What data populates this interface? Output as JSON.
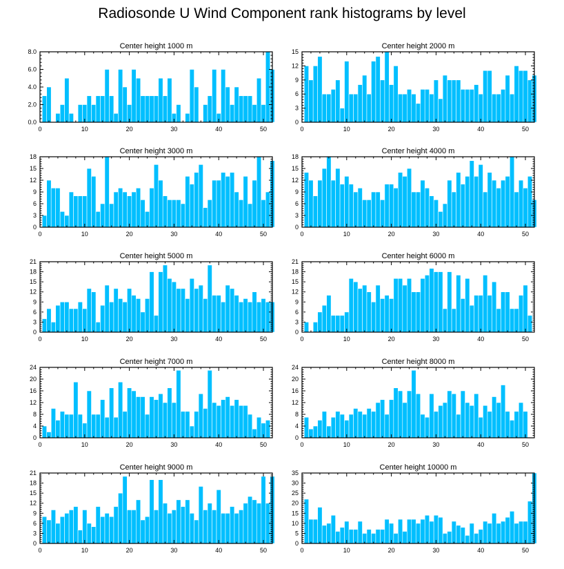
{
  "title": "Radiosonde U Wind Component rank histograms by level",
  "colors": {
    "bar": "#00bfff",
    "frame": "#000000",
    "background": "#ffffff"
  },
  "chart_data": [
    {
      "type": "bar",
      "title": "Center height 1000 m",
      "ylim": [
        0,
        8
      ],
      "yticks": [
        0,
        2,
        4,
        6,
        8
      ],
      "ytick_labels": [
        "0.0",
        "2.0",
        "4.0",
        "6.0",
        "8.0"
      ],
      "xlim": [
        0,
        52
      ],
      "xticks": [
        0,
        10,
        20,
        30,
        40,
        50
      ],
      "x_start": 1,
      "values": [
        3,
        4,
        0,
        1,
        2,
        5,
        1,
        0,
        2,
        2,
        3,
        2,
        3,
        3,
        6,
        3,
        1,
        6,
        4,
        2,
        6,
        5,
        3,
        3,
        3,
        3,
        5,
        3,
        5,
        1,
        2,
        0,
        1,
        6,
        4,
        0,
        2,
        3,
        6,
        1,
        6,
        4,
        2,
        4,
        3,
        3,
        3,
        2,
        5,
        2,
        8,
        6
      ]
    },
    {
      "type": "bar",
      "title": "Center height 2000 m",
      "ylim": [
        0,
        15
      ],
      "yticks": [
        0,
        3,
        6,
        9,
        12,
        15
      ],
      "ytick_labels": [
        "0",
        "3",
        "6",
        "9",
        "12",
        "15"
      ],
      "xlim": [
        0,
        52
      ],
      "xticks": [
        0,
        10,
        20,
        30,
        40,
        50
      ],
      "x_start": 1,
      "values": [
        12,
        9,
        12,
        14,
        6,
        6,
        7,
        9,
        3,
        13,
        6,
        6,
        8,
        10,
        6,
        13,
        14,
        9,
        15,
        8,
        12,
        6,
        6,
        7,
        6,
        4,
        7,
        7,
        6,
        9,
        5,
        10,
        9,
        9,
        9,
        7,
        7,
        7,
        8,
        6,
        11,
        11,
        6,
        6,
        7,
        10,
        6,
        12,
        11,
        11,
        9,
        10
      ]
    },
    {
      "type": "bar",
      "title": "Center height 3000 m",
      "ylim": [
        0,
        18
      ],
      "yticks": [
        0,
        3,
        6,
        9,
        12,
        15,
        18
      ],
      "ytick_labels": [
        "0",
        "3",
        "6",
        "9",
        "12",
        "15",
        "18"
      ],
      "xlim": [
        0,
        52
      ],
      "xticks": [
        0,
        10,
        20,
        30,
        40,
        50
      ],
      "x_start": 1,
      "values": [
        3,
        12,
        10,
        10,
        4,
        3,
        9,
        8,
        8,
        8,
        15,
        13,
        4,
        6,
        18,
        6,
        9,
        10,
        9,
        8,
        9,
        10,
        7,
        4,
        10,
        16,
        12,
        8,
        7,
        7,
        7,
        6,
        13,
        11,
        14,
        16,
        5,
        7,
        12,
        12,
        14,
        13,
        14,
        9,
        7,
        13,
        6,
        12,
        18,
        7,
        9,
        17
      ]
    },
    {
      "type": "bar",
      "title": "Center height 4000 m",
      "ylim": [
        0,
        18
      ],
      "yticks": [
        0,
        3,
        6,
        9,
        12,
        15,
        18
      ],
      "ytick_labels": [
        "0",
        "3",
        "6",
        "9",
        "12",
        "15",
        "18"
      ],
      "xlim": [
        0,
        52
      ],
      "xticks": [
        0,
        10,
        20,
        30,
        40,
        50
      ],
      "x_start": 1,
      "values": [
        14,
        12,
        8,
        12,
        15,
        18,
        12,
        15,
        11,
        13,
        11,
        9,
        10,
        7,
        7,
        9,
        9,
        7,
        11,
        11,
        10,
        14,
        13,
        15,
        9,
        9,
        12,
        10,
        8,
        7,
        4,
        6,
        12,
        9,
        14,
        11,
        13,
        17,
        13,
        16,
        9,
        14,
        12,
        10,
        12,
        13,
        18,
        9,
        12,
        10,
        13,
        7
      ]
    },
    {
      "type": "bar",
      "title": "Center height 5000 m",
      "ylim": [
        0,
        21
      ],
      "yticks": [
        0,
        3,
        6,
        9,
        12,
        15,
        18,
        21
      ],
      "ytick_labels": [
        "0",
        "3",
        "6",
        "9",
        "12",
        "15",
        "18",
        "21"
      ],
      "xlim": [
        0,
        52
      ],
      "xticks": [
        0,
        10,
        20,
        30,
        40,
        50
      ],
      "x_start": 1,
      "values": [
        4,
        7,
        3,
        8,
        9,
        9,
        7,
        7,
        9,
        7,
        13,
        12,
        3,
        8,
        14,
        9,
        13,
        10,
        9,
        13,
        11,
        10,
        6,
        10,
        18,
        5,
        18,
        20,
        16,
        15,
        13,
        13,
        10,
        16,
        13,
        14,
        10,
        20,
        11,
        11,
        9,
        14,
        13,
        11,
        9,
        10,
        9,
        12,
        9,
        10,
        9,
        9
      ]
    },
    {
      "type": "bar",
      "title": "Center height 6000 m",
      "ylim": [
        0,
        21
      ],
      "yticks": [
        0,
        3,
        6,
        9,
        12,
        15,
        18,
        21
      ],
      "ytick_labels": [
        "0",
        "3",
        "6",
        "9",
        "12",
        "15",
        "18",
        "21"
      ],
      "xlim": [
        0,
        52
      ],
      "xticks": [
        0,
        10,
        20,
        30,
        40,
        50
      ],
      "x_start": 1,
      "values": [
        3,
        0,
        3,
        6,
        8,
        11,
        5,
        5,
        5,
        6,
        16,
        15,
        13,
        14,
        12,
        9,
        14,
        10,
        11,
        10,
        16,
        16,
        14,
        16,
        12,
        12,
        16,
        17,
        19,
        18,
        18,
        7,
        18,
        7,
        17,
        10,
        16,
        8,
        11,
        11,
        17,
        11,
        15,
        7,
        12,
        12,
        7,
        7,
        11,
        14,
        5,
        0
      ]
    },
    {
      "type": "bar",
      "title": "Center height 7000 m",
      "ylim": [
        0,
        24
      ],
      "yticks": [
        0,
        4,
        8,
        12,
        16,
        20,
        24
      ],
      "ytick_labels": [
        "0",
        "4",
        "8",
        "12",
        "16",
        "20",
        "24"
      ],
      "xlim": [
        0,
        52
      ],
      "xticks": [
        0,
        10,
        20,
        30,
        40,
        50
      ],
      "x_start": 1,
      "values": [
        4,
        2,
        10,
        6,
        9,
        8,
        8,
        19,
        8,
        5,
        16,
        8,
        8,
        13,
        7,
        17,
        7,
        19,
        9,
        17,
        16,
        14,
        14,
        8,
        14,
        13,
        15,
        12,
        17,
        12,
        23,
        9,
        9,
        4,
        9,
        15,
        10,
        23,
        12,
        11,
        13,
        14,
        11,
        13,
        11,
        11,
        8,
        3,
        7,
        5,
        6,
        0
      ]
    },
    {
      "type": "bar",
      "title": "Center height 8000 m",
      "ylim": [
        0,
        24
      ],
      "yticks": [
        0,
        4,
        8,
        12,
        16,
        20,
        24
      ],
      "ytick_labels": [
        "0",
        "4",
        "8",
        "12",
        "16",
        "20",
        "24"
      ],
      "xlim": [
        0,
        52
      ],
      "xticks": [
        0,
        10,
        20,
        30,
        40,
        50
      ],
      "x_start": 1,
      "values": [
        7,
        3,
        4,
        6,
        9,
        4,
        7,
        9,
        8,
        6,
        8,
        10,
        9,
        8,
        10,
        9,
        12,
        13,
        8,
        13,
        17,
        16,
        12,
        16,
        23,
        15,
        8,
        7,
        15,
        9,
        11,
        12,
        16,
        15,
        8,
        16,
        12,
        11,
        15,
        7,
        11,
        9,
        14,
        12,
        18,
        9,
        6,
        9,
        12,
        9,
        0,
        0
      ]
    },
    {
      "type": "bar",
      "title": "Center height 9000 m",
      "ylim": [
        0,
        21
      ],
      "yticks": [
        0,
        3,
        6,
        9,
        12,
        15,
        18,
        21
      ],
      "ytick_labels": [
        "0",
        "3",
        "6",
        "9",
        "12",
        "15",
        "18",
        "21"
      ],
      "xlim": [
        0,
        52
      ],
      "xticks": [
        0,
        10,
        20,
        30,
        40,
        50
      ],
      "x_start": 1,
      "values": [
        8,
        7,
        10,
        6,
        8,
        9,
        10,
        11,
        4,
        10,
        6,
        5,
        11,
        8,
        9,
        8,
        11,
        15,
        20,
        10,
        10,
        13,
        7,
        8,
        19,
        10,
        19,
        12,
        9,
        10,
        13,
        11,
        13,
        9,
        7,
        17,
        10,
        12,
        10,
        16,
        9,
        9,
        11,
        9,
        10,
        12,
        14,
        13,
        12,
        20,
        12,
        20
      ]
    },
    {
      "type": "bar",
      "title": "Center height 10000 m",
      "ylim": [
        0,
        35
      ],
      "yticks": [
        0,
        5,
        10,
        15,
        20,
        25,
        30,
        35
      ],
      "ytick_labels": [
        "0",
        "5",
        "10",
        "15",
        "20",
        "25",
        "30",
        "35"
      ],
      "xlim": [
        0,
        52
      ],
      "xticks": [
        0,
        10,
        20,
        30,
        40,
        50
      ],
      "x_start": 1,
      "values": [
        22,
        12,
        12,
        18,
        9,
        10,
        14,
        6,
        8,
        11,
        7,
        7,
        11,
        5,
        7,
        5,
        7,
        7,
        12,
        10,
        5,
        12,
        6,
        12,
        12,
        10,
        12,
        14,
        11,
        14,
        13,
        5,
        6,
        11,
        9,
        8,
        4,
        10,
        5,
        7,
        11,
        10,
        15,
        10,
        11,
        13,
        16,
        10,
        11,
        11,
        21,
        35
      ]
    }
  ]
}
